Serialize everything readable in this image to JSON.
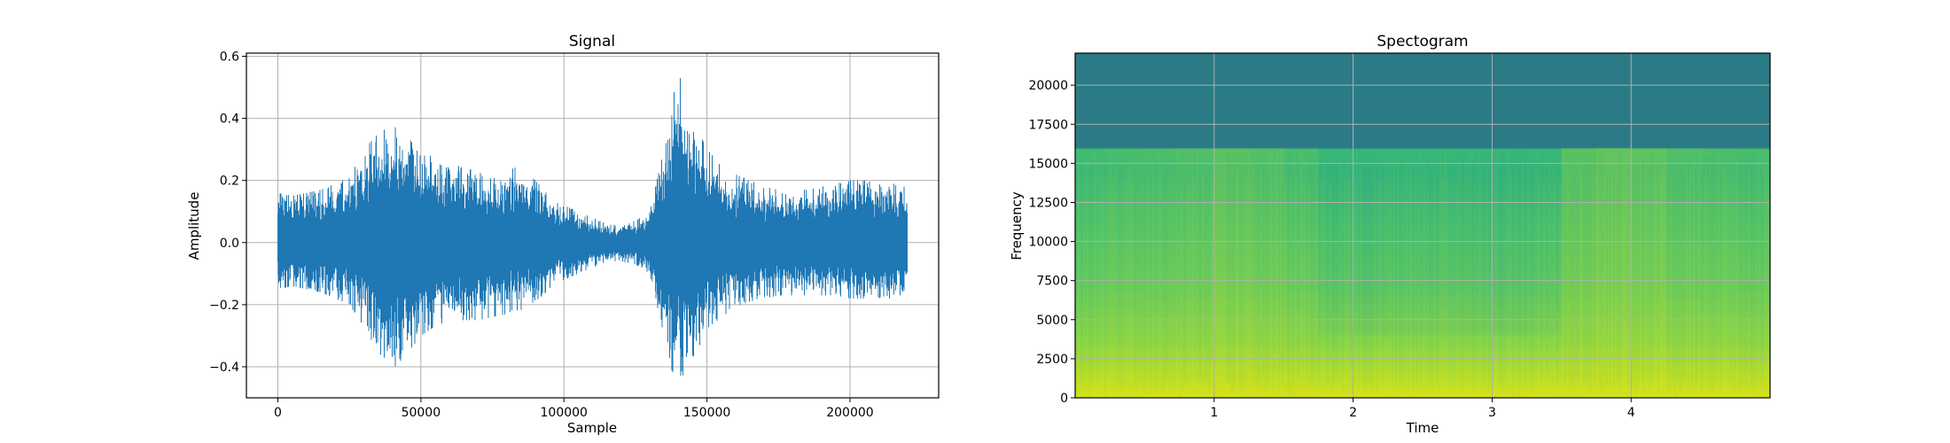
{
  "figure": {
    "background": "#ffffff"
  },
  "chart_data": [
    {
      "type": "line",
      "title": "Signal",
      "xlabel": "Sample",
      "ylabel": "Amplitude",
      "xlim": [
        -11000,
        231000
      ],
      "ylim": [
        -0.5,
        0.61
      ],
      "xticks": [
        0,
        50000,
        100000,
        150000,
        200000
      ],
      "xtick_labels": [
        "0",
        "50000",
        "100000",
        "150000",
        "200000"
      ],
      "yticks": [
        -0.4,
        -0.2,
        0.0,
        0.2,
        0.4,
        0.6
      ],
      "ytick_labels": [
        "−0.4",
        "−0.2",
        "0.0",
        "0.2",
        "0.4",
        "0.6"
      ],
      "grid": true,
      "color": "#1f77b4",
      "series": [
        {
          "x": [
            0,
            5000,
            10000,
            15000,
            20000,
            25000,
            30000,
            35000,
            40000,
            45000,
            50000,
            55000,
            60000,
            65000,
            70000,
            75000,
            80000,
            85000,
            90000,
            95000,
            100000,
            105000,
            110000,
            115000,
            120000,
            125000,
            130000,
            135000,
            137000,
            140000,
            145000,
            150000,
            155000,
            160000,
            165000,
            170000,
            175000,
            180000,
            185000,
            190000,
            195000,
            200000,
            205000,
            210000,
            215000,
            220000
          ],
          "upper": [
            0.16,
            0.15,
            0.16,
            0.17,
            0.19,
            0.22,
            0.3,
            0.35,
            0.38,
            0.34,
            0.3,
            0.27,
            0.26,
            0.24,
            0.23,
            0.22,
            0.23,
            0.25,
            0.2,
            0.15,
            0.12,
            0.1,
            0.08,
            0.06,
            0.06,
            0.07,
            0.1,
            0.3,
            0.42,
            0.55,
            0.4,
            0.3,
            0.25,
            0.22,
            0.2,
            0.18,
            0.17,
            0.17,
            0.17,
            0.18,
            0.19,
            0.2,
            0.2,
            0.19,
            0.19,
            0.18
          ],
          "lower": [
            -0.15,
            -0.14,
            -0.15,
            -0.16,
            -0.18,
            -0.2,
            -0.27,
            -0.35,
            -0.41,
            -0.36,
            -0.3,
            -0.27,
            -0.25,
            -0.25,
            -0.25,
            -0.24,
            -0.23,
            -0.22,
            -0.19,
            -0.15,
            -0.12,
            -0.1,
            -0.08,
            -0.06,
            -0.06,
            -0.07,
            -0.1,
            -0.3,
            -0.4,
            -0.45,
            -0.38,
            -0.28,
            -0.24,
            -0.21,
            -0.19,
            -0.18,
            -0.17,
            -0.17,
            -0.17,
            -0.17,
            -0.17,
            -0.18,
            -0.18,
            -0.18,
            -0.18,
            -0.17
          ]
        }
      ]
    },
    {
      "type": "heatmap",
      "title": "Spectogram",
      "xlabel": "Time",
      "ylabel": "Frequency",
      "xlim": [
        0,
        5
      ],
      "ylim": [
        0,
        22050
      ],
      "xticks": [
        1,
        2,
        3,
        4
      ],
      "xtick_labels": [
        "1",
        "2",
        "3",
        "4"
      ],
      "yticks": [
        0,
        2500,
        5000,
        7500,
        10000,
        12500,
        15000,
        17500,
        20000
      ],
      "ytick_labels": [
        "0",
        "2500",
        "5000",
        "7500",
        "10000",
        "12500",
        "15000",
        "17500",
        "20000"
      ],
      "grid": true,
      "colormap": "viridis",
      "cutoff_frequency": 16000,
      "time_energy": [
        0.55,
        0.6,
        0.62,
        0.66,
        0.72,
        0.68,
        0.6,
        0.5,
        0.45,
        0.48,
        0.5,
        0.46,
        0.44,
        0.5,
        0.72,
        0.78,
        0.74,
        0.66,
        0.62,
        0.6
      ],
      "colors": {
        "upper_band": "#2a7b86",
        "low": "#d9e21b",
        "mid": "#54c468",
        "high": "#2aa88a"
      }
    }
  ]
}
